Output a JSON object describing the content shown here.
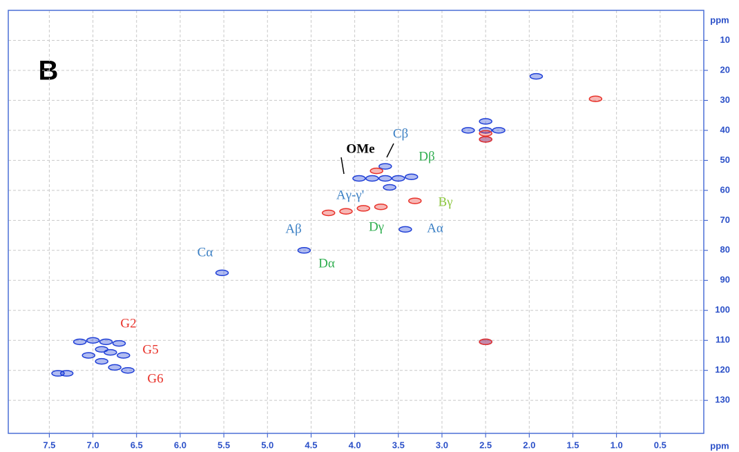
{
  "chart_data": {
    "type": "scatter",
    "panel_label": "B",
    "x_label": "ppm",
    "y_label": "ppm",
    "xlim": [
      7.97,
      0
    ],
    "ylim": [
      0,
      141
    ],
    "xticks": [
      7.5,
      {
        "value": 7,
        "label": "7.0"
      },
      6.5,
      {
        "value": 6,
        "label": "6.0"
      },
      5.5,
      {
        "value": 5,
        "label": "5.0"
      },
      4.5,
      {
        "value": 4,
        "label": "4.0"
      },
      3.5,
      {
        "value": 3,
        "label": "3.0"
      },
      2.5,
      {
        "value": 2,
        "label": "2.0"
      },
      1.5,
      {
        "value": 1,
        "label": "1.0"
      },
      0.5
    ],
    "yticks": [
      10,
      20,
      30,
      40,
      50,
      60,
      70,
      80,
      90,
      100,
      110,
      120,
      130
    ],
    "grid": true,
    "series": [
      {
        "color": "#1f3fd6",
        "x": [
          1.92,
          2.7,
          2.5,
          2.35,
          2.5,
          2.5,
          3.65,
          3.95,
          3.8,
          3.65,
          3.5,
          3.35,
          3.6,
          3.42,
          4.58,
          5.52,
          7.4,
          7.3,
          7.15,
          7.0,
          6.85,
          6.7,
          7.05,
          6.9,
          6.8,
          6.65,
          6.9,
          6.75,
          6.6,
          2.5
        ],
        "y": [
          22,
          40,
          40,
          40,
          37,
          43,
          52,
          56,
          56,
          56,
          56,
          55.5,
          59,
          73,
          80,
          87.5,
          121,
          121,
          110.5,
          110,
          110.5,
          111,
          115,
          113,
          114,
          115,
          117,
          119,
          120,
          110.5
        ]
      },
      {
        "color": "#e8322a",
        "x": [
          1.24,
          2.5,
          2.5,
          3.75,
          3.31,
          4.3,
          4.1,
          3.9,
          3.7,
          2.5
        ],
        "y": [
          29.5,
          41,
          43,
          53.5,
          63.5,
          67.5,
          67,
          66,
          65.5,
          110.5
        ]
      }
    ],
    "annotations": [
      "Cβ",
      "Dβ",
      "OMe",
      "Aγ-γ'",
      "Bγ",
      "Dγ",
      "Aα",
      "Aβ",
      "Dα",
      "Cα",
      "G2",
      "G5",
      "G6"
    ]
  }
}
